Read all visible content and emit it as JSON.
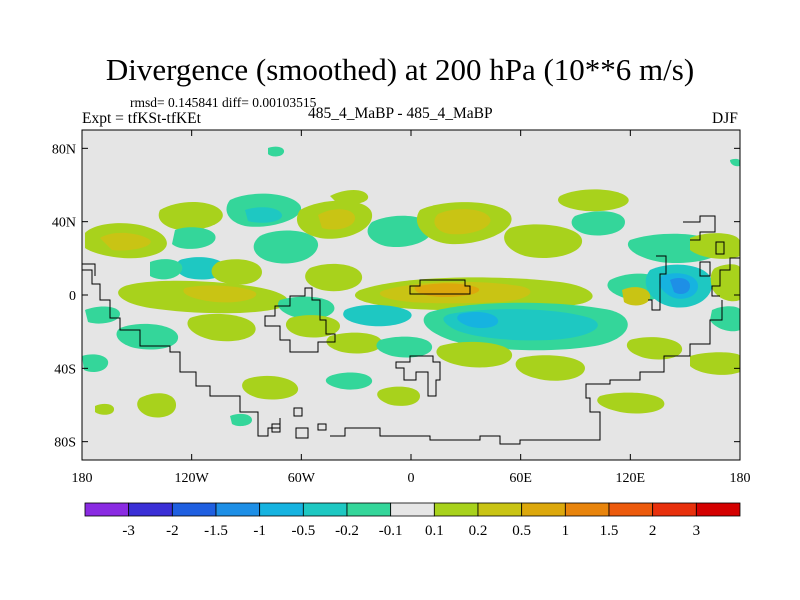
{
  "header": {
    "title": "Divergence (smoothed) at 200 hPa (10**6 m/s)",
    "stats": "rmsd= 0.145841 diff= 0.00103515",
    "expt": "Expt = tfKSt-tfKEt",
    "runs": "485_4_MaBP - 485_4_MaBP",
    "season": "DJF"
  },
  "colors": {
    "background_field": "#e5e5e5",
    "coastline": "#000000"
  },
  "chart_data": {
    "type": "heatmap",
    "title": "Divergence (smoothed) at 200 hPa (10**6 m/s)",
    "x_axis": {
      "range": [
        -180,
        180
      ],
      "ticks": [
        -180,
        -120,
        -60,
        0,
        60,
        120,
        180
      ],
      "tick_labels": [
        "180",
        "120W",
        "60W",
        "0",
        "60E",
        "120E",
        "180"
      ]
    },
    "y_axis": {
      "range": [
        -90,
        90
      ],
      "ticks": [
        80,
        40,
        0,
        -40,
        -80
      ],
      "tick_labels": [
        "80N",
        "40N",
        "0",
        "40S",
        "80S"
      ]
    },
    "colorbar": {
      "labels": [
        "-3",
        "-2",
        "-1.5",
        "-1",
        "-0.5",
        "-0.2",
        "-0.1",
        "0.1",
        "0.2",
        "0.5",
        "1",
        "1.5",
        "2",
        "3"
      ],
      "colors": [
        "#8a2be2",
        "#3b2fd6",
        "#1f5fe0",
        "#1e8fe6",
        "#16b3e0",
        "#1ec8c2",
        "#34d69a",
        "#e6e6e6",
        "#a8d21c",
        "#c9c414",
        "#dca80c",
        "#e8840c",
        "#ec5a0c",
        "#e8300c",
        "#d40000"
      ]
    },
    "regions": [
      {
        "lon": -155,
        "lat": 30,
        "level": "0.2"
      },
      {
        "lon": -150,
        "lat": 30,
        "level": "0.5"
      },
      {
        "lon": -130,
        "lat": 40,
        "level": "0.2"
      },
      {
        "lon": -85,
        "lat": 30,
        "level": "-0.2"
      },
      {
        "lon": -50,
        "lat": 30,
        "level": "-0.2"
      },
      {
        "lon": -40,
        "lat": 47,
        "level": "0.2"
      },
      {
        "lon": -35,
        "lat": 45,
        "level": "0.5"
      },
      {
        "lon": 5,
        "lat": 45,
        "level": "0.2"
      },
      {
        "lon": 30,
        "lat": 40,
        "level": "0.5"
      },
      {
        "lon": 50,
        "lat": 40,
        "level": "0.2"
      },
      {
        "lon": 130,
        "lat": 30,
        "level": "-0.2"
      },
      {
        "lon": 150,
        "lat": 30,
        "level": "0.2"
      },
      {
        "lon": 0,
        "lat": 5,
        "level": "0.5"
      },
      {
        "lon": 10,
        "lat": 5,
        "level": "1"
      },
      {
        "lon": 140,
        "lat": 5,
        "level": "-0.5"
      },
      {
        "lon": 150,
        "lat": 5,
        "level": "-1"
      },
      {
        "lon": 45,
        "lat": -12,
        "level": "-0.5"
      },
      {
        "lon": 90,
        "lat": -12,
        "level": "-0.2"
      },
      {
        "lon": -95,
        "lat": -12,
        "level": "0.2"
      },
      {
        "lon": -115,
        "lat": -40,
        "level": "0.2"
      },
      {
        "lon": -90,
        "lat": -48,
        "level": "-0.2"
      },
      {
        "lon": -160,
        "lat": -65,
        "level": "0.2"
      },
      {
        "lon": 115,
        "lat": -58,
        "level": "0.2"
      }
    ]
  }
}
